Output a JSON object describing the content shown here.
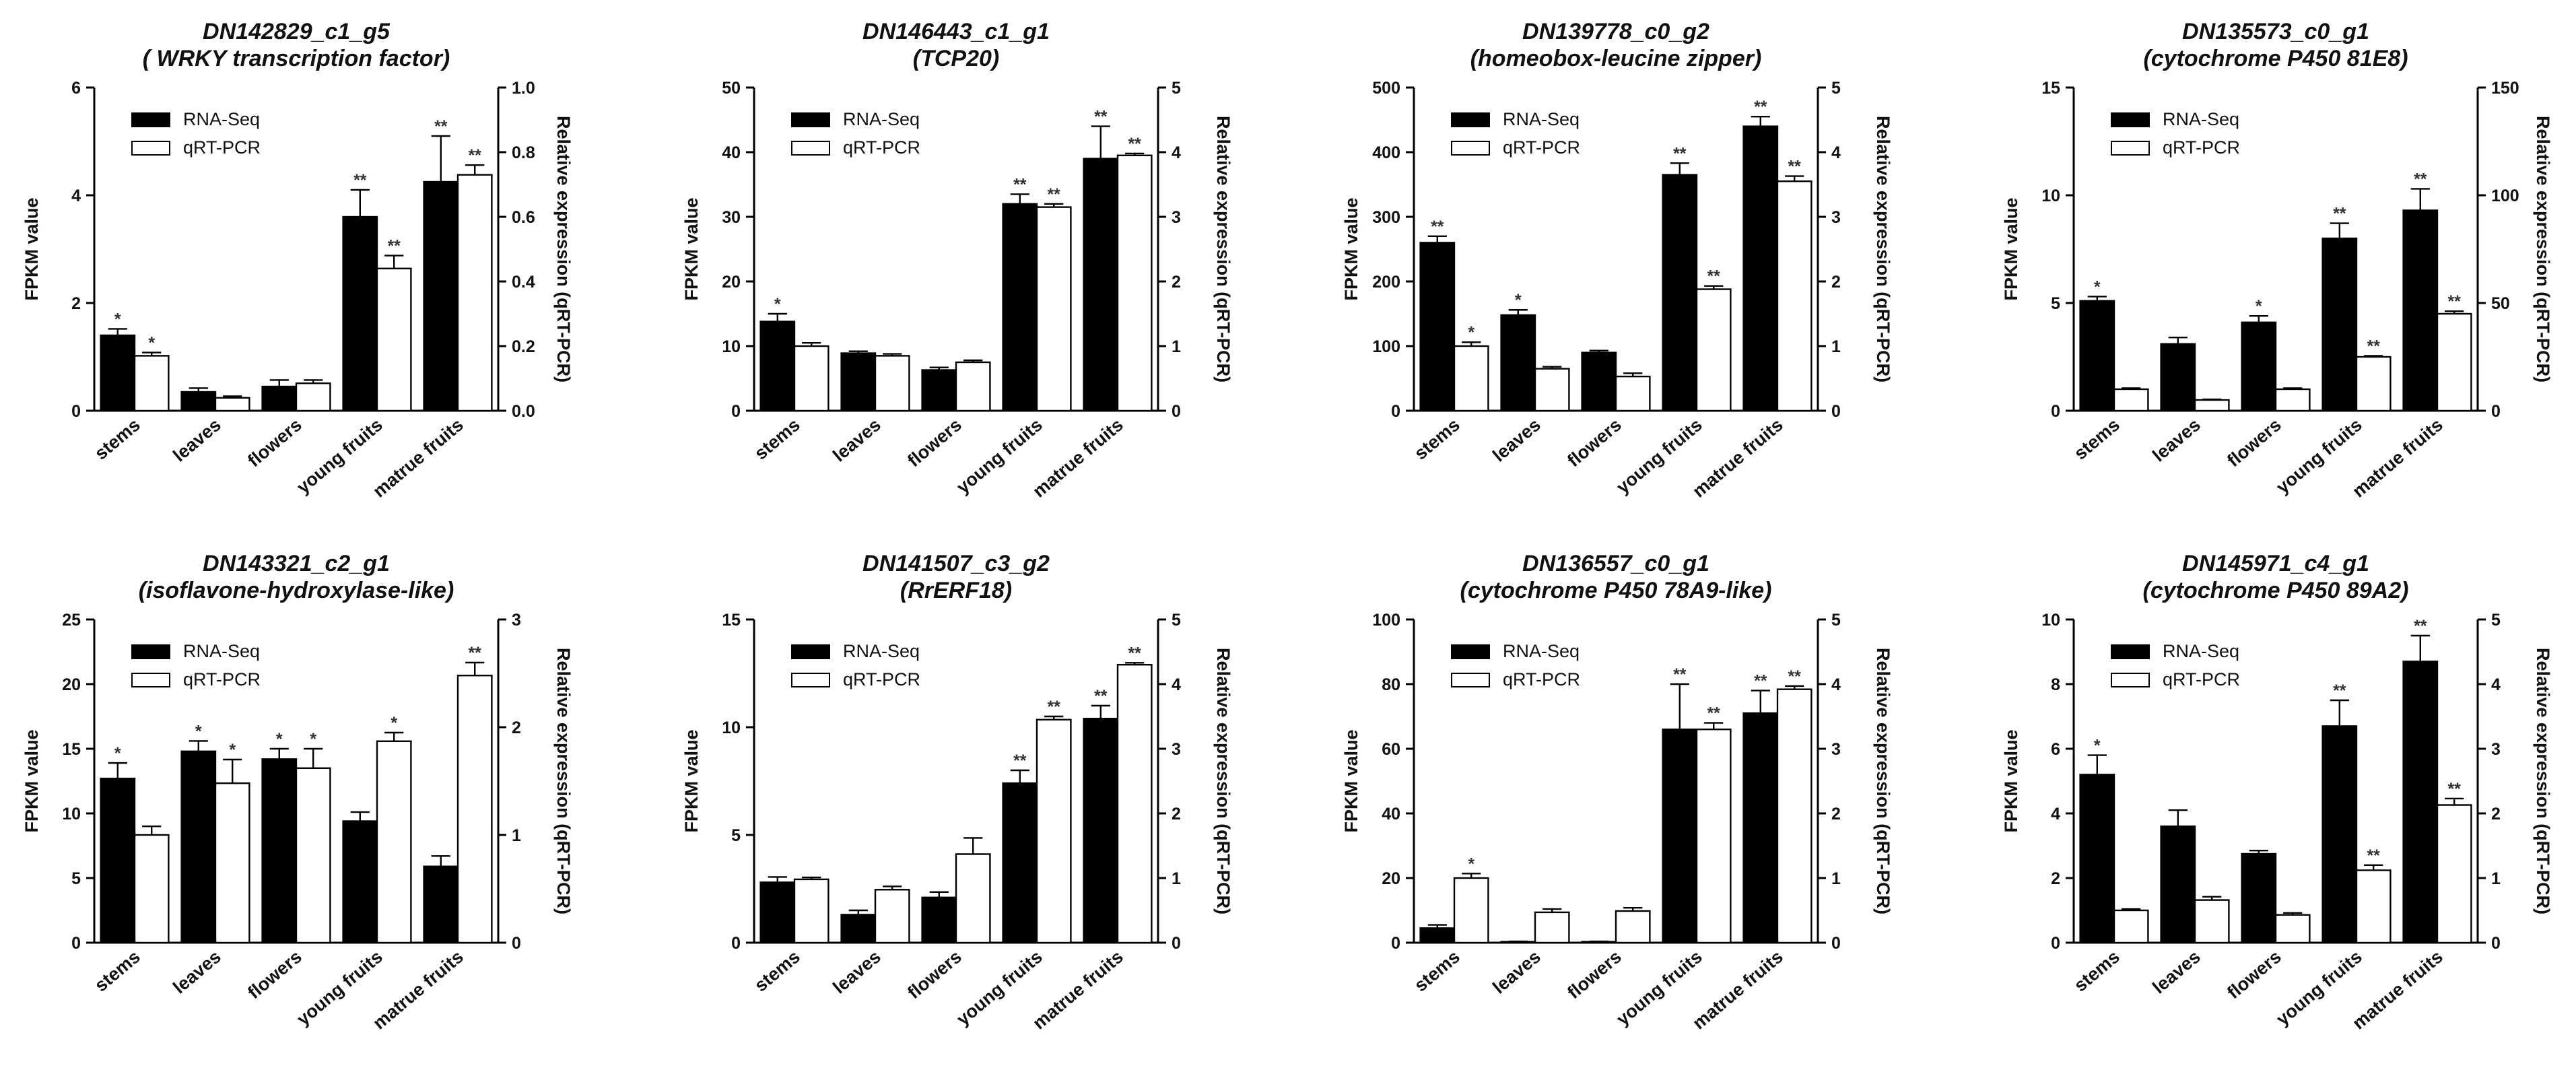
{
  "figure": {
    "name": "Expression of eight genes by RNA-Seq and qRT-PCR across five tissues"
  },
  "legend": {
    "rnaseq": "RNA-Seq",
    "qrtpcr": "qRT-PCR"
  },
  "axes": {
    "left_label": "FPKM value",
    "right_label": "Relative expression (qRT-PCR)"
  },
  "categories": [
    "stems",
    "leaves",
    "flowers",
    "young fruits",
    "matrue fruits"
  ],
  "colors": {
    "rnaseq": "#000000",
    "qrtpcr": "#ffffff",
    "stroke": "#000000"
  },
  "chart_data": [
    {
      "type": "bar",
      "title": "DN142829_c1_g5",
      "subtitle": "( WRKY transcription factor)",
      "categories": [
        "stems",
        "leaves",
        "flowers",
        "young fruits",
        "matrue fruits"
      ],
      "ylabel": "FPKM value",
      "y2label": "Relative expression (qRT-PCR)",
      "ylim": [
        0,
        6
      ],
      "yticks": [
        "0",
        "2",
        "4",
        "6"
      ],
      "y2lim": [
        0,
        1
      ],
      "y2ticks": [
        "0.0",
        "0.2",
        "0.4",
        "0.6",
        "0.8",
        "1.0"
      ],
      "legend_position": "top-left",
      "series": [
        {
          "name": "RNA-Seq",
          "axis": "left",
          "values": [
            1.4,
            0.35,
            0.45,
            3.6,
            4.25
          ],
          "errors": [
            0.12,
            0.07,
            0.12,
            0.5,
            0.85
          ],
          "sig": [
            "*",
            "",
            "",
            "**",
            "**"
          ]
        },
        {
          "name": "qRT-PCR",
          "axis": "right",
          "values": [
            0.17,
            0.04,
            0.085,
            0.44,
            0.73
          ],
          "errors": [
            0.01,
            0.005,
            0.01,
            0.04,
            0.03
          ],
          "sig": [
            "*",
            "",
            "",
            "**",
            "**"
          ]
        }
      ]
    },
    {
      "type": "bar",
      "title": "DN146443_c1_g1",
      "subtitle": "(TCP20)",
      "categories": [
        "stems",
        "leaves",
        "flowers",
        "young fruits",
        "matrue fruits"
      ],
      "ylabel": "FPKM value",
      "y2label": "Relative expression (qRT-PCR)",
      "ylim": [
        0,
        50
      ],
      "yticks": [
        "0",
        "10",
        "20",
        "30",
        "40",
        "50"
      ],
      "y2lim": [
        0,
        5
      ],
      "y2ticks": [
        "0",
        "1",
        "2",
        "3",
        "4",
        "5"
      ],
      "legend_position": "top-left",
      "series": [
        {
          "name": "RNA-Seq",
          "axis": "left",
          "values": [
            13.8,
            8.9,
            6.3,
            32,
            39
          ],
          "errors": [
            1.2,
            0.3,
            0.4,
            1.5,
            5
          ],
          "sig": [
            "*",
            "",
            "",
            "**",
            "**"
          ]
        },
        {
          "name": "qRT-PCR",
          "axis": "right",
          "values": [
            1.0,
            0.85,
            0.75,
            3.15,
            3.95
          ],
          "errors": [
            0.05,
            0.03,
            0.03,
            0.05,
            0.03
          ],
          "sig": [
            "",
            "",
            "",
            "**",
            "**"
          ]
        }
      ]
    },
    {
      "type": "bar",
      "title": "DN139778_c0_g2",
      "subtitle": "(homeobox-leucine zipper)",
      "categories": [
        "stems",
        "leaves",
        "flowers",
        "young fruits",
        "matrue fruits"
      ],
      "ylabel": "FPKM value",
      "y2label": "Relative expression (qRT-PCR)",
      "ylim": [
        0,
        500
      ],
      "yticks": [
        "0",
        "100",
        "200",
        "300",
        "400",
        "500"
      ],
      "y2lim": [
        0,
        5
      ],
      "y2ticks": [
        "0",
        "1",
        "2",
        "3",
        "4",
        "5"
      ],
      "legend_position": "top-left",
      "series": [
        {
          "name": "RNA-Seq",
          "axis": "left",
          "values": [
            260,
            148,
            90,
            365,
            440
          ],
          "errors": [
            10,
            8,
            3,
            18,
            15
          ],
          "sig": [
            "**",
            "*",
            "",
            "**",
            "**"
          ]
        },
        {
          "name": "qRT-PCR",
          "axis": "right",
          "values": [
            1.0,
            0.65,
            0.53,
            1.88,
            3.55
          ],
          "errors": [
            0.06,
            0.03,
            0.05,
            0.05,
            0.08
          ],
          "sig": [
            "*",
            "",
            "",
            "**",
            "**"
          ]
        }
      ]
    },
    {
      "type": "bar",
      "title": "DN135573_c0_g1",
      "subtitle": "(cytochrome P450 81E8)",
      "categories": [
        "stems",
        "leaves",
        "flowers",
        "young fruits",
        "matrue fruits"
      ],
      "ylabel": "FPKM value",
      "y2label": "Relative expression (qRT-PCR)",
      "ylim": [
        0,
        15
      ],
      "yticks": [
        "0",
        "5",
        "10",
        "15"
      ],
      "y2lim": [
        0,
        150
      ],
      "y2ticks": [
        "0",
        "50",
        "100",
        "150"
      ],
      "legend_position": "top-left",
      "series": [
        {
          "name": "RNA-Seq",
          "axis": "left",
          "values": [
            5.1,
            3.1,
            4.1,
            8.0,
            9.3
          ],
          "errors": [
            0.2,
            0.3,
            0.3,
            0.7,
            1.0
          ],
          "sig": [
            "*",
            "",
            "*",
            "**",
            "**"
          ]
        },
        {
          "name": "qRT-PCR",
          "axis": "right",
          "values": [
            10,
            5,
            10,
            25,
            45
          ],
          "errors": [
            0.5,
            0.3,
            0.5,
            0.5,
            1.2
          ],
          "sig": [
            "",
            "",
            "",
            "**",
            "**"
          ]
        }
      ]
    },
    {
      "type": "bar",
      "title": "DN143321_c2_g1",
      "subtitle": "(isoflavone-hydroxylase-like)",
      "categories": [
        "stems",
        "leaves",
        "flowers",
        "young fruits",
        "matrue fruits"
      ],
      "ylabel": "FPKM value",
      "y2label": "Relative expression (qRT-PCR)",
      "ylim": [
        0,
        25
      ],
      "yticks": [
        "0",
        "5",
        "10",
        "15",
        "20",
        "25"
      ],
      "y2lim": [
        0,
        3
      ],
      "y2ticks": [
        "0",
        "1",
        "2",
        "3"
      ],
      "legend_position": "top-left",
      "series": [
        {
          "name": "RNA-Seq",
          "axis": "left",
          "values": [
            12.7,
            14.8,
            14.2,
            9.4,
            5.9
          ],
          "errors": [
            1.2,
            0.8,
            0.8,
            0.7,
            0.8
          ],
          "sig": [
            "*",
            "*",
            "*",
            "",
            ""
          ]
        },
        {
          "name": "qRT-PCR",
          "axis": "right",
          "values": [
            1.0,
            1.48,
            1.62,
            1.87,
            2.48
          ],
          "errors": [
            0.08,
            0.22,
            0.18,
            0.08,
            0.12
          ],
          "sig": [
            "",
            "*",
            "*",
            "*",
            "**"
          ]
        }
      ]
    },
    {
      "type": "bar",
      "title": "DN141507_c3_g2",
      "subtitle": "(RrERF18)",
      "categories": [
        "stems",
        "leaves",
        "flowers",
        "young fruits",
        "matrue fruits"
      ],
      "ylabel": "FPKM value",
      "y2label": "Relative expression (qRT-PCR)",
      "ylim": [
        0,
        15
      ],
      "yticks": [
        "0",
        "5",
        "10",
        "15"
      ],
      "y2lim": [
        0,
        5
      ],
      "y2ticks": [
        "0",
        "1",
        "2",
        "3",
        "4",
        "5"
      ],
      "legend_position": "top-left",
      "series": [
        {
          "name": "RNA-Seq",
          "axis": "left",
          "values": [
            2.8,
            1.3,
            2.1,
            7.4,
            10.4
          ],
          "errors": [
            0.25,
            0.2,
            0.25,
            0.6,
            0.6
          ],
          "sig": [
            "",
            "",
            "",
            "**",
            "**"
          ]
        },
        {
          "name": "qRT-PCR",
          "axis": "right",
          "values": [
            0.98,
            0.82,
            1.37,
            3.45,
            4.3
          ],
          "errors": [
            0.03,
            0.05,
            0.25,
            0.05,
            0.03
          ],
          "sig": [
            "",
            "",
            "",
            "**",
            "**"
          ]
        }
      ]
    },
    {
      "type": "bar",
      "title": "DN136557_c0_g1",
      "subtitle": "(cytochrome P450 78A9-like)",
      "categories": [
        "stems",
        "leaves",
        "flowers",
        "young fruits",
        "matrue fruits"
      ],
      "ylabel": "FPKM value",
      "y2label": "Relative expression (qRT-PCR)",
      "ylim": [
        0,
        100
      ],
      "yticks": [
        "0",
        "20",
        "40",
        "60",
        "80",
        "100"
      ],
      "y2lim": [
        0,
        5
      ],
      "y2ticks": [
        "0",
        "1",
        "2",
        "3",
        "4",
        "5"
      ],
      "legend_position": "top-left",
      "series": [
        {
          "name": "RNA-Seq",
          "axis": "left",
          "values": [
            4.5,
            0.3,
            0.3,
            66,
            71
          ],
          "errors": [
            1.0,
            0.1,
            0.1,
            14,
            7
          ],
          "sig": [
            "",
            "",
            "",
            "**",
            "**"
          ]
        },
        {
          "name": "qRT-PCR",
          "axis": "right",
          "values": [
            1.0,
            0.47,
            0.49,
            3.3,
            3.92
          ],
          "errors": [
            0.07,
            0.05,
            0.05,
            0.1,
            0.05
          ],
          "sig": [
            "*",
            "",
            "",
            "**",
            "**"
          ]
        }
      ]
    },
    {
      "type": "bar",
      "title": "DN145971_c4_g1",
      "subtitle": "(cytochrome P450 89A2)",
      "categories": [
        "stems",
        "leaves",
        "flowers",
        "young fruits",
        "matrue fruits"
      ],
      "ylabel": "FPKM value",
      "y2label": "Relative expression (qRT-PCR)",
      "ylim": [
        0,
        10
      ],
      "yticks": [
        "0",
        "2",
        "4",
        "6",
        "8",
        "10"
      ],
      "y2lim": [
        0,
        5
      ],
      "y2ticks": [
        "0",
        "1",
        "2",
        "3",
        "4",
        "5"
      ],
      "legend_position": "top-left",
      "series": [
        {
          "name": "RNA-Seq",
          "axis": "left",
          "values": [
            5.2,
            3.6,
            2.75,
            6.7,
            8.7
          ],
          "errors": [
            0.6,
            0.5,
            0.1,
            0.8,
            0.8
          ],
          "sig": [
            "*",
            "",
            "",
            "**",
            "**"
          ]
        },
        {
          "name": "qRT-PCR",
          "axis": "right",
          "values": [
            0.5,
            0.66,
            0.43,
            1.12,
            2.13
          ],
          "errors": [
            0.02,
            0.05,
            0.03,
            0.08,
            0.1
          ],
          "sig": [
            "",
            "",
            "",
            "**",
            "**"
          ]
        }
      ]
    }
  ]
}
